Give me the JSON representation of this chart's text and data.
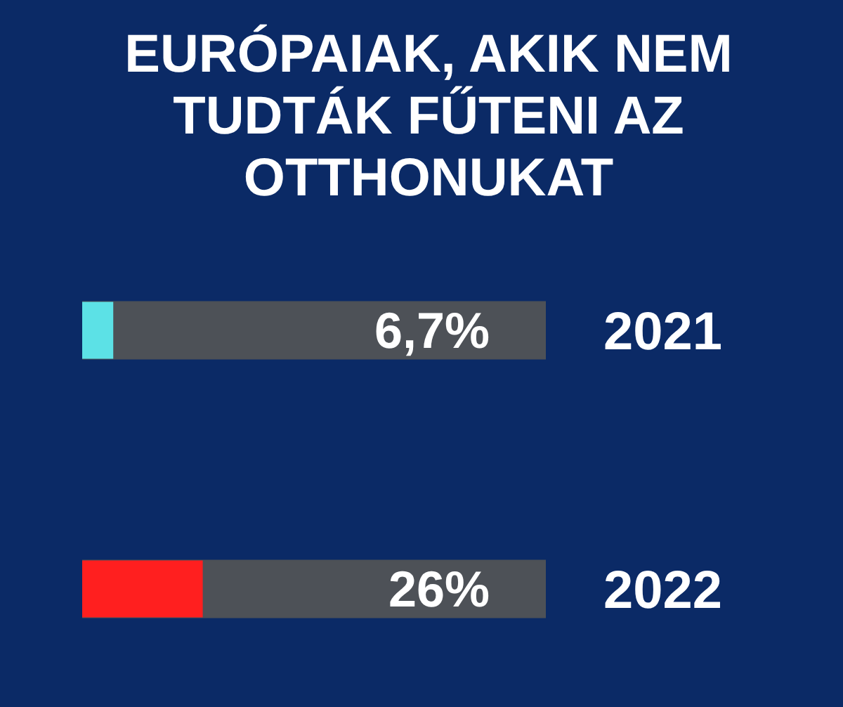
{
  "chart_data": {
    "type": "bar",
    "orientation": "horizontal",
    "title": "EURÓPAIAK, AKIK NEM TUDTÁK FŰTENI AZ OTTHONUKAT",
    "categories": [
      "2021",
      "2022"
    ],
    "values": [
      6.7,
      26
    ],
    "colors": [
      "#5ce1e6",
      "#ff1f1f"
    ],
    "value_labels": [
      "6,7%",
      "26%"
    ],
    "xlim": [
      0,
      100
    ],
    "tick_labels": "y",
    "grid": false
  }
}
